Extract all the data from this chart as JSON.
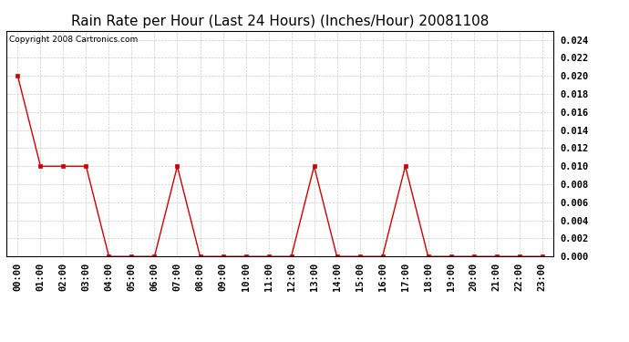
{
  "title": "Rain Rate per Hour (Last 24 Hours) (Inches/Hour) 20081108",
  "copyright_text": "Copyright 2008 Cartronics.com",
  "hours": [
    0,
    1,
    2,
    3,
    4,
    5,
    6,
    7,
    8,
    9,
    10,
    11,
    12,
    13,
    14,
    15,
    16,
    17,
    18,
    19,
    20,
    21,
    22,
    23
  ],
  "values": [
    0.02,
    0.01,
    0.01,
    0.01,
    0.0,
    0.0,
    0.0,
    0.01,
    0.0,
    0.0,
    0.0,
    0.0,
    0.0,
    0.01,
    0.0,
    0.0,
    0.0,
    0.01,
    0.0,
    0.0,
    0.0,
    0.0,
    0.0,
    0.0
  ],
  "line_color": "#cc0000",
  "marker_color": "#cc0000",
  "bg_color": "#ffffff",
  "plot_bg_color": "#ffffff",
  "grid_color": "#cccccc",
  "ylim": [
    0,
    0.025
  ],
  "yticks": [
    0.0,
    0.002,
    0.004,
    0.006,
    0.008,
    0.01,
    0.012,
    0.014,
    0.016,
    0.018,
    0.02,
    0.022,
    0.024
  ],
  "title_fontsize": 11,
  "tick_fontsize": 7.5,
  "copyright_fontsize": 6.5
}
